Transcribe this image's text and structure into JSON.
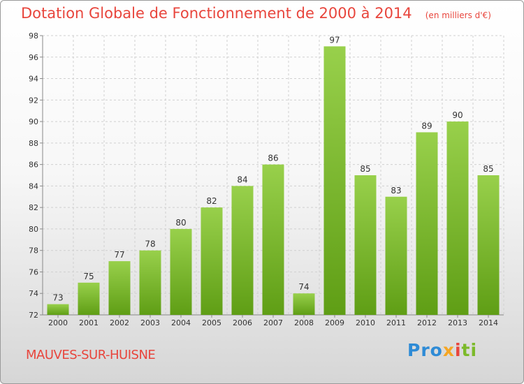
{
  "chart_data": {
    "type": "bar",
    "title": "Dotation Globale de Fonctionnement de 2000 à 2014",
    "subtitle": "(en milliers d'€)",
    "categories": [
      "2000",
      "2001",
      "2002",
      "2003",
      "2004",
      "2005",
      "2006",
      "2007",
      "2008",
      "2009",
      "2010",
      "2011",
      "2012",
      "2013",
      "2014"
    ],
    "values": [
      73,
      75,
      77,
      78,
      80,
      82,
      84,
      86,
      74,
      97,
      85,
      83,
      89,
      90,
      85
    ],
    "ylim": [
      72,
      98
    ],
    "yticks": [
      "72",
      "74",
      "76",
      "78",
      "80",
      "82",
      "84",
      "86",
      "88",
      "90",
      "92",
      "94",
      "96",
      "98"
    ],
    "grid": true,
    "bar_color": "#7cba2a"
  },
  "commune": "MAUVES-SUR-HUISNE",
  "logo": {
    "p1": "Pro",
    "p2": "x",
    "p3": "i",
    "p4": "ti"
  },
  "colors": {
    "title": "#e8453c",
    "accent": "#7cba2a"
  }
}
